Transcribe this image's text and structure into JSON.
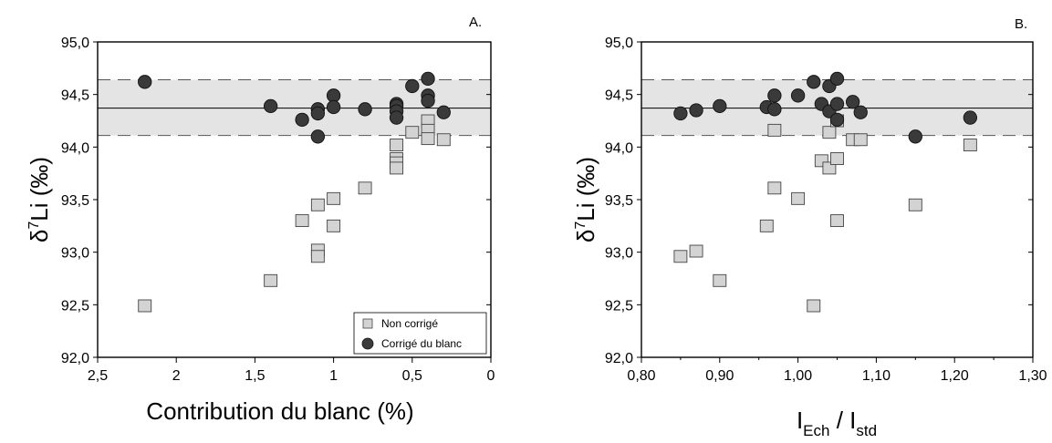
{
  "chart_data": [
    {
      "type": "scatter",
      "panel_label": "A.",
      "xlabel": "Contribution du blanc (%)",
      "ylabel": {
        "delta": "δ",
        "sup": "7",
        "main": "Li (‰)"
      },
      "xlim": [
        2.5,
        0
      ],
      "x_reversed": true,
      "ylim": [
        92.0,
        95.0
      ],
      "xticks": [
        "2,5",
        "2",
        "1,5",
        "1",
        "0,5",
        "0"
      ],
      "yticks": [
        "92,0",
        "92,5",
        "93,0",
        "93,5",
        "94,0",
        "94,5",
        "95,0"
      ],
      "xtick_values": [
        2.5,
        2.0,
        1.5,
        1.0,
        0.5,
        0.0
      ],
      "ytick_values": [
        92.0,
        92.5,
        93.0,
        93.5,
        94.0,
        94.5,
        95.0
      ],
      "reference": {
        "mean": 94.37,
        "band": [
          94.11,
          94.64
        ]
      },
      "legend": {
        "placement": "bottom-right",
        "entries": [
          "Non corrigé",
          "Corrigé du blanc"
        ]
      },
      "series": [
        {
          "name": "Non corrigé",
          "marker": "square",
          "color": "#d3d3d3",
          "points": [
            [
              2.2,
              92.49
            ],
            [
              1.4,
              92.73
            ],
            [
              1.2,
              93.3
            ],
            [
              1.1,
              93.45
            ],
            [
              1.1,
              93.02
            ],
            [
              1.1,
              92.96
            ],
            [
              1.0,
              93.51
            ],
            [
              1.0,
              93.25
            ],
            [
              0.8,
              93.61
            ],
            [
              0.6,
              94.02
            ],
            [
              0.6,
              93.89
            ],
            [
              0.6,
              93.85
            ],
            [
              0.6,
              93.8
            ],
            [
              0.5,
              94.14
            ],
            [
              0.4,
              94.25
            ],
            [
              0.4,
              94.16
            ],
            [
              0.4,
              94.08
            ],
            [
              0.3,
              94.07
            ]
          ]
        },
        {
          "name": "Corrigé du blanc",
          "marker": "circle",
          "color": "#3a3a3a",
          "points": [
            [
              2.2,
              94.62
            ],
            [
              1.4,
              94.39
            ],
            [
              1.2,
              94.26
            ],
            [
              1.1,
              94.36
            ],
            [
              1.1,
              94.32
            ],
            [
              1.1,
              94.1
            ],
            [
              1.0,
              94.49
            ],
            [
              1.0,
              94.38
            ],
            [
              0.8,
              94.36
            ],
            [
              0.6,
              94.41
            ],
            [
              0.6,
              94.39
            ],
            [
              0.6,
              94.34
            ],
            [
              0.6,
              94.28
            ],
            [
              0.5,
              94.58
            ],
            [
              0.4,
              94.65
            ],
            [
              0.4,
              94.49
            ],
            [
              0.4,
              94.44
            ],
            [
              0.3,
              94.33
            ]
          ]
        }
      ]
    },
    {
      "type": "scatter",
      "panel_label": "B.",
      "xlabel": {
        "I1": "I",
        "sub1": "Ech",
        "sep": " / ",
        "I2": "I",
        "sub2": "std"
      },
      "ylabel": {
        "delta": "δ",
        "sup": "7",
        "main": "Li (‰)"
      },
      "xlim": [
        0.8,
        1.3
      ],
      "ylim": [
        92.0,
        95.0
      ],
      "xticks": [
        "0,80",
        "0,90",
        "1,00",
        "1,10",
        "1,20",
        "1,30"
      ],
      "yticks": [
        "92,0",
        "92,5",
        "93,0",
        "93,5",
        "94,0",
        "94,5",
        "95,0"
      ],
      "xtick_values": [
        0.8,
        0.9,
        1.0,
        1.1,
        1.2,
        1.3
      ],
      "ytick_values": [
        92.0,
        92.5,
        93.0,
        93.5,
        94.0,
        94.5,
        95.0
      ],
      "xminor_values": [
        0.85,
        0.95,
        1.05,
        1.15,
        1.25
      ],
      "reference": {
        "mean": 94.37,
        "band": [
          94.11,
          94.64
        ]
      },
      "series": [
        {
          "name": "Non corrigé",
          "marker": "square",
          "color": "#d3d3d3",
          "points": [
            [
              0.85,
              92.96
            ],
            [
              0.87,
              93.01
            ],
            [
              0.9,
              92.73
            ],
            [
              0.96,
              93.25
            ],
            [
              0.97,
              94.16
            ],
            [
              0.97,
              93.61
            ],
            [
              1.0,
              93.51
            ],
            [
              1.02,
              92.49
            ],
            [
              1.03,
              93.87
            ],
            [
              1.04,
              93.8
            ],
            [
              1.04,
              94.14
            ],
            [
              1.05,
              93.89
            ],
            [
              1.05,
              93.3
            ],
            [
              1.07,
              94.07
            ],
            [
              1.08,
              94.07
            ],
            [
              1.15,
              93.45
            ],
            [
              1.22,
              94.02
            ],
            [
              1.05,
              94.25
            ]
          ]
        },
        {
          "name": "Corrigé du blanc",
          "marker": "circle",
          "color": "#3a3a3a",
          "points": [
            [
              0.85,
              94.32
            ],
            [
              0.87,
              94.35
            ],
            [
              0.9,
              94.39
            ],
            [
              0.96,
              94.38
            ],
            [
              0.97,
              94.49
            ],
            [
              0.97,
              94.36
            ],
            [
              1.0,
              94.49
            ],
            [
              1.02,
              94.62
            ],
            [
              1.03,
              94.41
            ],
            [
              1.04,
              94.58
            ],
            [
              1.04,
              94.34
            ],
            [
              1.05,
              94.65
            ],
            [
              1.05,
              94.41
            ],
            [
              1.05,
              94.26
            ],
            [
              1.07,
              94.43
            ],
            [
              1.08,
              94.33
            ],
            [
              1.15,
              94.1
            ],
            [
              1.22,
              94.28
            ]
          ]
        }
      ]
    }
  ]
}
